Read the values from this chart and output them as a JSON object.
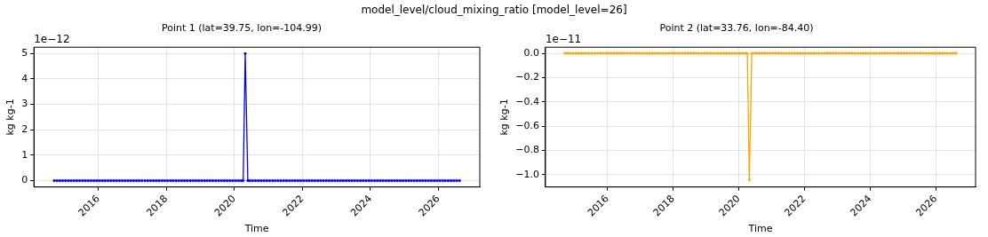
{
  "chart_data": [
    {
      "type": "line",
      "title": "Point 1 (lat=39.75, lon=-104.99)",
      "xlabel": "Time",
      "ylabel": "kg kg-1",
      "annotations": [
        "1e−12",
        "model_level/cloud_mixing_ratio [model_level=26]"
      ],
      "x": [
        "2014-09-15",
        "2014-10-15",
        "2014-11-15",
        "2014-12-15",
        "2015-01-15",
        "2015-02-15",
        "2015-03-15",
        "2015-04-15",
        "2015-05-15",
        "2015-06-15",
        "2015-07-15",
        "2015-08-15",
        "2015-09-15",
        "2015-10-15",
        "2015-11-15",
        "2015-12-15",
        "2016-01-15",
        "2016-02-15",
        "2016-03-15",
        "2016-04-15",
        "2016-05-15",
        "2016-06-15",
        "2016-07-15",
        "2016-08-15",
        "2016-09-15",
        "2016-10-15",
        "2016-11-15",
        "2016-12-15",
        "2017-01-15",
        "2017-02-15",
        "2017-03-15",
        "2017-04-15",
        "2017-05-01",
        "2017-05-15",
        "2017-06-15",
        "2017-07-15",
        "2017-08-15",
        "2017-09-15",
        "2017-10-15",
        "2017-11-15",
        "2017-12-15",
        "2018-01-15",
        "2018-02-15",
        "2018-03-15",
        "2018-04-15",
        "2018-05-15",
        "2018-06-15",
        "2018-07-15",
        "2018-08-15",
        "2018-09-15",
        "2018-10-15",
        "2018-11-15",
        "2018-12-15",
        "2019-01-15",
        "2019-02-15",
        "2019-03-15",
        "2019-04-15",
        "2019-05-15",
        "2019-06-15",
        "2019-07-15",
        "2019-08-15",
        "2019-09-15",
        "2019-10-15",
        "2019-11-15",
        "2019-12-15",
        "2020-01-15",
        "2020-02-15",
        "2020-03-15",
        "2020-04-05",
        "2020-04-27",
        "2020-05-25",
        "2020-06-15",
        "2020-07-15",
        "2020-08-15",
        "2020-09-15",
        "2020-10-15",
        "2020-11-15",
        "2020-12-15",
        "2021-01-15",
        "2021-02-15",
        "2021-03-15",
        "2021-04-15",
        "2021-05-15",
        "2021-06-15",
        "2021-07-15",
        "2021-08-15",
        "2021-09-15",
        "2021-10-15",
        "2021-11-15",
        "2021-12-15",
        "2022-01-15",
        "2022-02-15",
        "2022-03-15",
        "2022-04-15",
        "2022-05-15",
        "2022-06-15",
        "2022-07-15",
        "2022-08-15",
        "2022-09-15",
        "2022-10-15",
        "2022-11-15",
        "2022-12-15",
        "2023-01-15",
        "2023-02-15",
        "2023-03-15",
        "2023-04-15",
        "2023-05-15",
        "2023-06-15",
        "2023-07-15",
        "2023-08-15",
        "2023-09-15",
        "2023-10-15",
        "2023-11-15",
        "2023-12-15",
        "2024-01-15",
        "2024-02-15",
        "2024-03-15",
        "2024-04-15",
        "2024-05-15",
        "2024-06-15",
        "2024-07-15",
        "2024-08-15",
        "2024-09-15",
        "2024-10-15",
        "2024-11-15",
        "2024-12-15",
        "2025-01-15",
        "2025-02-15",
        "2025-03-15",
        "2025-04-15",
        "2025-05-15",
        "2025-06-15",
        "2025-07-15",
        "2025-08-15",
        "2025-09-15",
        "2025-10-15",
        "2025-11-15",
        "2025-12-15",
        "2026-01-15",
        "2026-02-15",
        "2026-03-15",
        "2026-04-15",
        "2026-05-15",
        "2026-06-15",
        "2026-07-15",
        "2026-08-15"
      ],
      "series": [
        {
          "color": "#0000ff",
          "values": [
            0,
            0,
            0,
            0,
            0,
            0,
            0,
            0,
            0,
            0,
            0,
            0,
            0,
            0,
            0,
            0,
            0,
            0,
            0,
            0,
            0,
            0,
            0,
            0,
            0,
            0,
            0,
            0,
            0,
            0,
            0,
            0,
            null,
            0,
            0,
            0,
            0,
            0,
            0,
            0,
            0,
            0,
            0,
            0,
            0,
            0,
            0,
            0,
            0,
            0,
            0,
            0,
            0,
            0,
            0,
            0,
            0,
            0,
            0,
            0,
            0,
            0,
            0,
            0,
            0,
            0,
            0,
            0,
            0,
            5,
            0,
            0,
            0,
            0,
            0,
            0,
            0,
            0,
            0,
            0,
            0,
            0,
            0,
            0,
            0,
            0,
            0,
            0,
            0,
            0,
            0,
            0,
            0,
            0,
            0,
            0,
            0,
            0,
            0,
            0,
            0,
            0,
            0,
            0,
            0,
            0,
            0,
            0,
            0,
            0,
            0,
            0,
            0,
            0,
            0,
            0,
            0,
            0,
            0,
            0,
            0,
            0,
            0,
            0,
            0,
            0,
            0,
            0,
            0,
            0,
            0,
            0,
            0,
            0,
            0,
            0,
            0,
            0,
            0,
            0,
            0,
            0,
            0,
            0,
            0,
            0
          ]
        }
      ],
      "xlim": [
        "2014-02-10",
        "2027-03-20"
      ],
      "xticks": [
        "2016",
        "2018",
        "2020",
        "2022",
        "2024",
        "2026"
      ],
      "ylim": [
        -0.25,
        5.25
      ],
      "yticks": [
        0,
        1,
        2,
        3,
        4,
        5
      ],
      "grid": true,
      "marker": "circle",
      "line_style": "solid"
    },
    {
      "type": "line",
      "title": "Point 2 (lat=33.76, lon=-84.40)",
      "xlabel": "Time",
      "ylabel": "kg kg-1",
      "annotations": [
        "1e−11"
      ],
      "x": [
        "2014-09-15",
        "2014-10-15",
        "2014-11-15",
        "2014-12-15",
        "2015-01-15",
        "2015-02-15",
        "2015-03-15",
        "2015-04-15",
        "2015-05-15",
        "2015-06-15",
        "2015-07-15",
        "2015-08-15",
        "2015-09-15",
        "2015-10-15",
        "2015-11-15",
        "2015-12-15",
        "2016-01-15",
        "2016-02-15",
        "2016-03-15",
        "2016-04-15",
        "2016-05-15",
        "2016-06-15",
        "2016-07-15",
        "2016-08-15",
        "2016-09-15",
        "2016-10-15",
        "2016-11-15",
        "2016-12-15",
        "2017-01-15",
        "2017-02-15",
        "2017-03-15",
        "2017-04-15",
        "2017-05-01",
        "2017-05-15",
        "2017-06-15",
        "2017-07-15",
        "2017-08-15",
        "2017-09-15",
        "2017-10-15",
        "2017-11-15",
        "2017-12-15",
        "2018-01-15",
        "2018-02-15",
        "2018-03-15",
        "2018-04-15",
        "2018-05-15",
        "2018-06-15",
        "2018-07-15",
        "2018-08-15",
        "2018-09-15",
        "2018-10-15",
        "2018-11-15",
        "2018-12-15",
        "2019-01-15",
        "2019-02-15",
        "2019-03-15",
        "2019-04-15",
        "2019-05-15",
        "2019-06-15",
        "2019-07-15",
        "2019-08-15",
        "2019-09-15",
        "2019-10-15",
        "2019-11-15",
        "2019-12-15",
        "2020-01-15",
        "2020-02-15",
        "2020-03-15",
        "2020-04-05",
        "2020-04-27",
        "2020-05-25",
        "2020-06-15",
        "2020-07-15",
        "2020-08-15",
        "2020-09-15",
        "2020-10-15",
        "2020-11-15",
        "2020-12-15",
        "2021-01-15",
        "2021-02-15",
        "2021-03-15",
        "2021-04-15",
        "2021-05-15",
        "2021-06-15",
        "2021-07-15",
        "2021-08-15",
        "2021-09-15",
        "2021-10-15",
        "2021-11-15",
        "2021-12-15",
        "2022-01-15",
        "2022-02-15",
        "2022-03-15",
        "2022-04-15",
        "2022-05-15",
        "2022-06-15",
        "2022-07-15",
        "2022-08-15",
        "2022-09-15",
        "2022-10-15",
        "2022-11-15",
        "2022-12-15",
        "2023-01-15",
        "2023-02-15",
        "2023-03-15",
        "2023-04-15",
        "2023-05-15",
        "2023-06-15",
        "2023-07-15",
        "2023-08-15",
        "2023-09-15",
        "2023-10-15",
        "2023-11-15",
        "2023-12-15",
        "2024-01-15",
        "2024-02-15",
        "2024-03-15",
        "2024-04-15",
        "2024-05-15",
        "2024-06-15",
        "2024-07-15",
        "2024-08-15",
        "2024-09-15",
        "2024-10-15",
        "2024-11-15",
        "2024-12-15",
        "2025-01-15",
        "2025-02-15",
        "2025-03-15",
        "2025-04-15",
        "2025-05-15",
        "2025-06-15",
        "2025-07-15",
        "2025-08-15",
        "2025-09-15",
        "2025-10-15",
        "2025-11-15",
        "2025-12-15",
        "2026-01-15",
        "2026-02-15",
        "2026-03-15",
        "2026-04-15",
        "2026-05-15",
        "2026-06-15",
        "2026-07-15",
        "2026-08-15"
      ],
      "series": [
        {
          "color": "#ffa500",
          "values": [
            0,
            0,
            0,
            0,
            0,
            0,
            0,
            0,
            0,
            0,
            0,
            0,
            0,
            0,
            0,
            0,
            0,
            0,
            0,
            0,
            0,
            0,
            0,
            0,
            0,
            0,
            0,
            0,
            0,
            0,
            0,
            0,
            null,
            0,
            0,
            0,
            0,
            0,
            0,
            0,
            0,
            0,
            0,
            0,
            0,
            0,
            0,
            0,
            0,
            0,
            0,
            0,
            0,
            0,
            0,
            0,
            0,
            0,
            0,
            0,
            0,
            0,
            0,
            0,
            0,
            0,
            0,
            0,
            0,
            -1.04,
            0,
            0,
            0,
            0,
            0,
            0,
            0,
            0,
            0,
            0,
            0,
            0,
            0,
            0,
            0,
            0,
            0,
            0,
            0,
            0,
            0,
            0,
            0,
            0,
            0,
            0,
            0,
            0,
            0,
            0,
            0,
            0,
            0,
            0,
            0,
            0,
            0,
            0,
            0,
            0,
            0,
            0,
            0,
            0,
            0,
            0,
            0,
            0,
            0,
            0,
            0,
            0,
            0,
            0,
            0,
            0,
            0,
            0,
            0,
            0,
            0,
            0,
            0,
            0,
            0,
            0,
            0,
            0,
            0,
            0,
            0,
            0,
            0,
            0,
            0,
            0
          ]
        }
      ],
      "xlim": [
        "2014-02-10",
        "2027-03-20"
      ],
      "xticks": [
        "2016",
        "2018",
        "2020",
        "2022",
        "2024",
        "2026"
      ],
      "ylim": [
        -1.1,
        0.05
      ],
      "yticks": [
        {
          "value": 0,
          "label": "0.0"
        },
        {
          "value": -0.2,
          "label": "−0.2"
        },
        {
          "value": -0.4,
          "label": "−0.4"
        },
        {
          "value": -0.6,
          "label": "−0.6"
        },
        {
          "value": -0.8,
          "label": "−0.8"
        },
        {
          "value": -1,
          "label": "−1.0"
        }
      ],
      "grid": true,
      "marker": "circle",
      "line_style": "solid"
    }
  ]
}
